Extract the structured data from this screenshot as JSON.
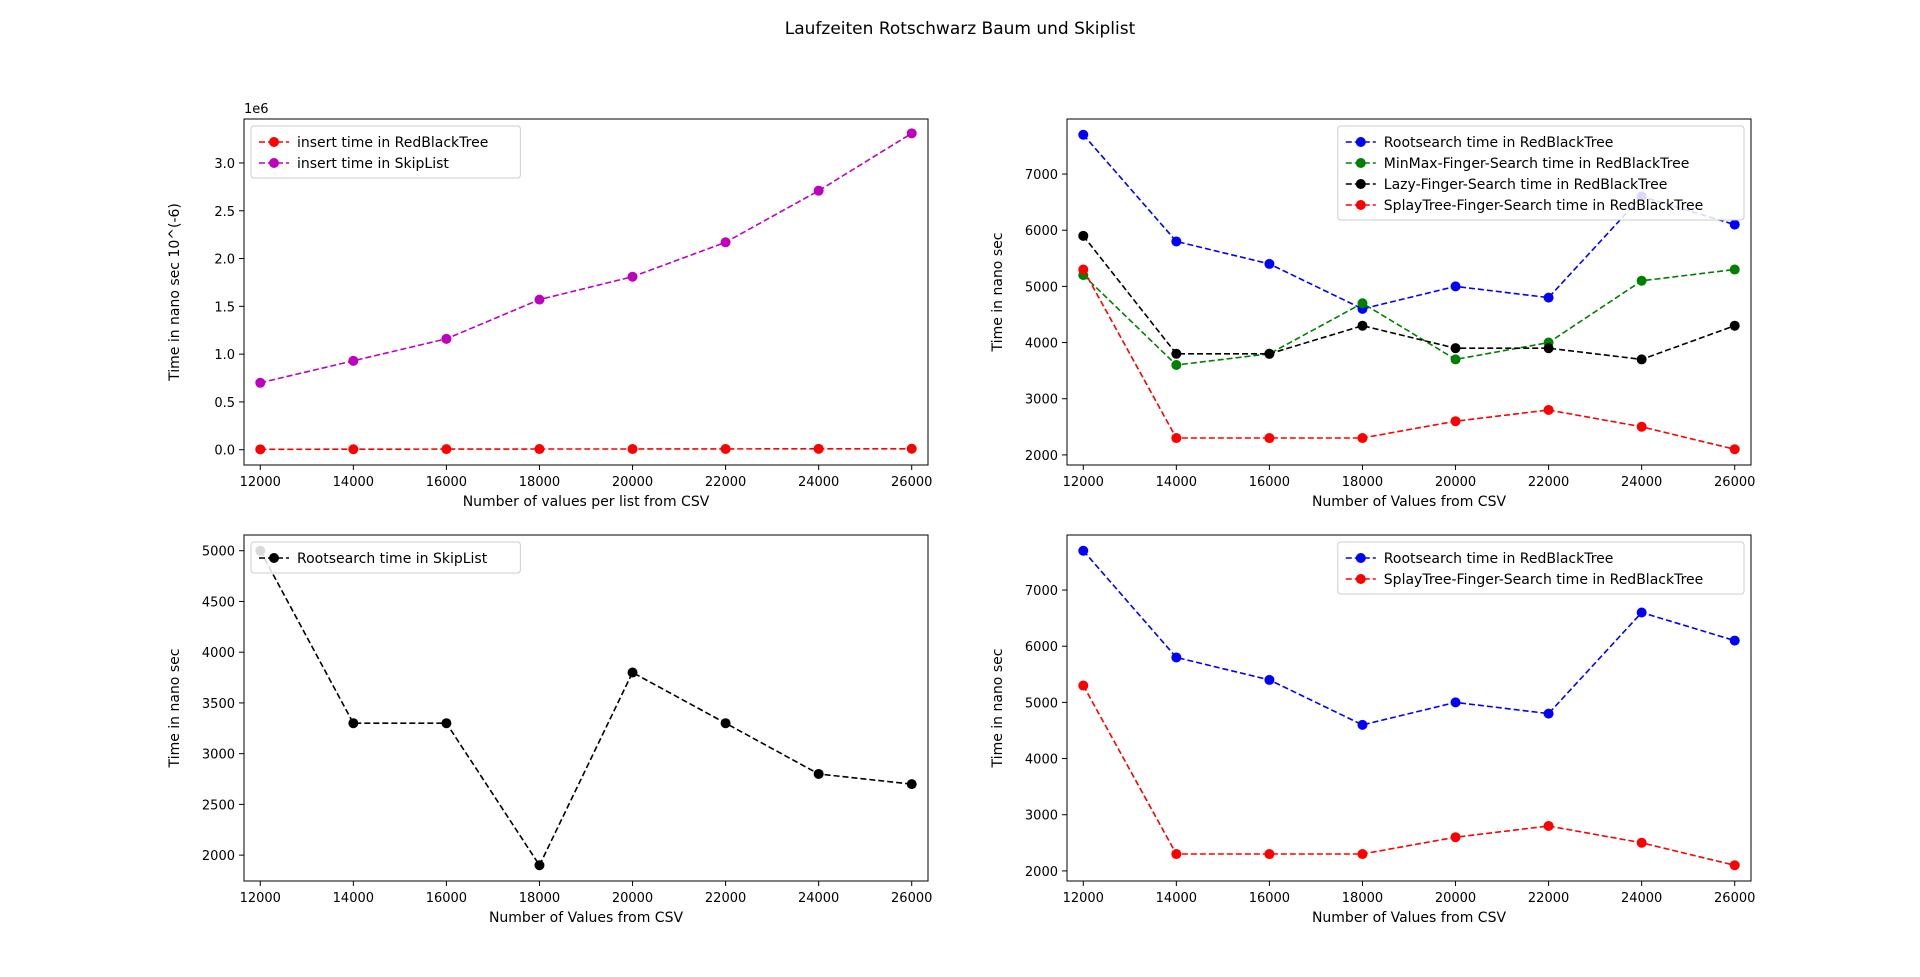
{
  "figure": {
    "suptitle": "Laufzeiten Rotschwarz Baum und Skiplist"
  },
  "chart_data": [
    {
      "type": "line",
      "title": "",
      "xlabel": "Number of values per list from CSV",
      "ylabel": "Time in nano sec 10^(-6)",
      "offset_text": "1e6",
      "xlim": [
        11650,
        26350
      ],
      "ylim": [
        -0.16,
        3.46
      ],
      "x_ticks": [
        12000,
        14000,
        16000,
        18000,
        20000,
        22000,
        24000,
        26000
      ],
      "y_ticks": [
        0,
        0.5,
        1,
        1.5,
        2,
        2.5,
        3
      ],
      "y_tick_labels": [
        "0.0",
        "0.5",
        "1.0",
        "1.5",
        "2.0",
        "2.5",
        "3.0"
      ],
      "legend_position": "upper-left",
      "x": [
        12000,
        14000,
        16000,
        18000,
        20000,
        22000,
        24000,
        26000
      ],
      "series": [
        {
          "name": "insert time in RedBlackTree",
          "color": "#ff0000",
          "values": [
            0.004,
            0.005,
            0.006,
            0.007,
            0.007,
            0.008,
            0.009,
            0.01
          ]
        },
        {
          "name": "insert time in SkipList",
          "color": "#bf00bf",
          "values": [
            0.7,
            0.93,
            1.16,
            1.57,
            1.81,
            2.17,
            2.71,
            3.31
          ]
        }
      ]
    },
    {
      "type": "line",
      "title": "",
      "xlabel": "Number of Values from CSV",
      "ylabel": "Time in nano sec",
      "xlim": [
        11650,
        26350
      ],
      "ylim": [
        1820,
        7980
      ],
      "x_ticks": [
        12000,
        14000,
        16000,
        18000,
        20000,
        22000,
        24000,
        26000
      ],
      "y_ticks": [
        2000,
        3000,
        4000,
        5000,
        6000,
        7000
      ],
      "legend_position": "upper-right",
      "x": [
        12000,
        14000,
        16000,
        18000,
        20000,
        22000,
        24000,
        26000
      ],
      "series": [
        {
          "name": "Rootsearch time in RedBlackTree",
          "color": "#0000ff",
          "values": [
            7700,
            5800,
            5400,
            4600,
            5000,
            4800,
            6600,
            6100
          ]
        },
        {
          "name": "MinMax-Finger-Search time in RedBlackTree",
          "color": "#008000",
          "values": [
            5200,
            3600,
            3800,
            4700,
            3700,
            4000,
            5100,
            5300
          ]
        },
        {
          "name": "Lazy-Finger-Search time in RedBlackTree",
          "color": "#000000",
          "values": [
            5900,
            3800,
            3800,
            4300,
            3900,
            3900,
            3700,
            4300
          ]
        },
        {
          "name": "SplayTree-Finger-Search time in RedBlackTree",
          "color": "#ff0000",
          "values": [
            5300,
            2300,
            2300,
            2300,
            2600,
            2800,
            2500,
            2100
          ]
        }
      ]
    },
    {
      "type": "line",
      "title": "",
      "xlabel": "Number of Values from CSV",
      "ylabel": "Time in nano sec",
      "xlim": [
        11650,
        26350
      ],
      "ylim": [
        1745,
        5155
      ],
      "x_ticks": [
        12000,
        14000,
        16000,
        18000,
        20000,
        22000,
        24000,
        26000
      ],
      "y_ticks": [
        2000,
        2500,
        3000,
        3500,
        4000,
        4500,
        5000
      ],
      "legend_position": "upper-left",
      "x": [
        12000,
        14000,
        16000,
        18000,
        20000,
        22000,
        24000,
        26000
      ],
      "series": [
        {
          "name": "Rootsearch time in SkipList",
          "color": "#000000",
          "values": [
            5000,
            3300,
            3300,
            1900,
            3800,
            3300,
            2800,
            2700
          ]
        }
      ]
    },
    {
      "type": "line",
      "title": "",
      "xlabel": "Number of Values from CSV",
      "ylabel": "Time in nano sec",
      "xlim": [
        11650,
        26350
      ],
      "ylim": [
        1820,
        7980
      ],
      "x_ticks": [
        12000,
        14000,
        16000,
        18000,
        20000,
        22000,
        24000,
        26000
      ],
      "y_ticks": [
        2000,
        3000,
        4000,
        5000,
        6000,
        7000
      ],
      "legend_position": "upper-right",
      "x": [
        12000,
        14000,
        16000,
        18000,
        20000,
        22000,
        24000,
        26000
      ],
      "series": [
        {
          "name": "Rootsearch time in RedBlackTree",
          "color": "#0000ff",
          "values": [
            7700,
            5800,
            5400,
            4600,
            5000,
            4800,
            6600,
            6100
          ]
        },
        {
          "name": "SplayTree-Finger-Search time in RedBlackTree",
          "color": "#ff0000",
          "values": [
            5300,
            2300,
            2300,
            2300,
            2600,
            2800,
            2500,
            2100
          ]
        }
      ]
    }
  ]
}
